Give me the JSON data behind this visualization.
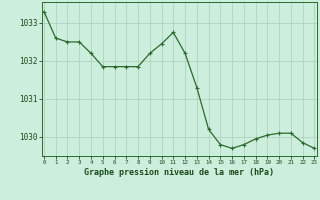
{
  "x": [
    0,
    1,
    2,
    3,
    4,
    5,
    6,
    7,
    8,
    9,
    10,
    11,
    12,
    13,
    14,
    15,
    16,
    17,
    18,
    19,
    20,
    21,
    22,
    23
  ],
  "y": [
    1033.3,
    1032.6,
    1032.5,
    1032.5,
    1032.2,
    1031.85,
    1031.85,
    1031.85,
    1031.85,
    1032.2,
    1032.45,
    1032.75,
    1032.2,
    1031.3,
    1030.2,
    1029.8,
    1029.7,
    1029.8,
    1029.95,
    1030.05,
    1030.1,
    1030.1,
    1029.85,
    1029.7
  ],
  "line_color": "#2d6a2d",
  "marker_color": "#2d6a2d",
  "bg_color": "#cceedd",
  "grid_color": "#aaccbb",
  "xlabel": "Graphe pression niveau de la mer (hPa)",
  "xlabel_color": "#1a4a1a",
  "tick_color": "#1a4a1a",
  "ytick_labels": [
    1030,
    1031,
    1032,
    1033
  ],
  "xtick_labels": [
    0,
    1,
    2,
    3,
    4,
    5,
    6,
    7,
    8,
    9,
    10,
    11,
    12,
    13,
    14,
    15,
    16,
    17,
    18,
    19,
    20,
    21,
    22,
    23
  ],
  "ylim": [
    1029.5,
    1033.55
  ],
  "xlim": [
    -0.2,
    23.2
  ],
  "spine_color": "#2d6a2d"
}
